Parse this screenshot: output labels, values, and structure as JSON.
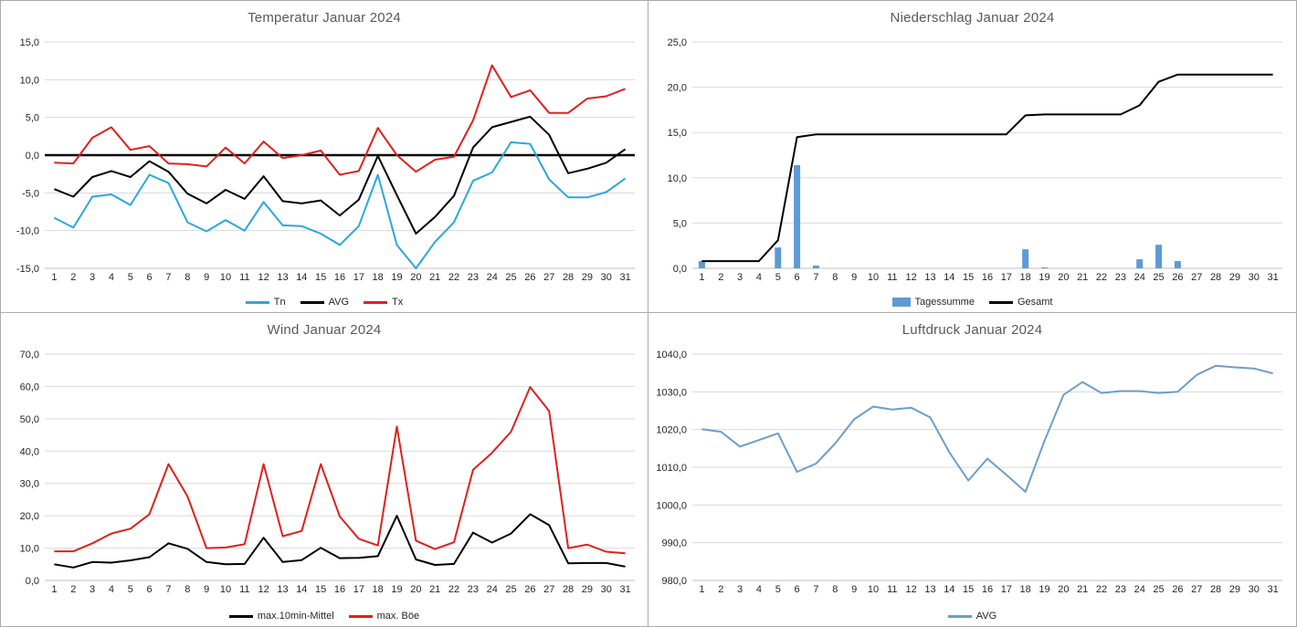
{
  "page": {
    "background": "#FFFFFF",
    "panel_border_color": "#ABABAB",
    "gridline_color": "#D9D9D9",
    "title_color": "#595959",
    "tick_label_color": "#262626"
  },
  "chart_data": [
    {
      "type": "line",
      "title": "Temperatur Januar 2024",
      "categories": [
        1,
        2,
        3,
        4,
        5,
        6,
        7,
        8,
        9,
        10,
        11,
        12,
        13,
        14,
        15,
        16,
        17,
        18,
        19,
        20,
        21,
        22,
        23,
        24,
        25,
        26,
        27,
        28,
        29,
        30,
        31
      ],
      "ylim": [
        -15,
        15
      ],
      "ytick_step": 5,
      "grid": true,
      "zero_line": true,
      "legend_position": "bottom",
      "series": [
        {
          "name": "Tn",
          "type": "line",
          "color": "#2BA7DE",
          "values": [
            -8.3,
            -9.6,
            -5.5,
            -5.2,
            -6.6,
            -2.6,
            -3.7,
            -8.9,
            -10.1,
            -8.6,
            -10.0,
            -6.2,
            -9.3,
            -9.4,
            -10.4,
            -11.9,
            -9.4,
            -2.6,
            -11.9,
            -15.0,
            -11.5,
            -8.9,
            -3.4,
            -2.3,
            1.7,
            1.5,
            -3.2,
            -5.6,
            -5.6,
            -4.9,
            -3.1
          ]
        },
        {
          "name": "AVG",
          "type": "line",
          "color": "#000000",
          "values": [
            -4.5,
            -5.5,
            -2.9,
            -2.1,
            -2.9,
            -0.8,
            -2.2,
            -5.1,
            -6.4,
            -4.6,
            -5.8,
            -2.8,
            -6.1,
            -6.4,
            -6.0,
            -8.0,
            -5.9,
            -0.1,
            -5.3,
            -10.4,
            -8.2,
            -5.4,
            1.0,
            3.7,
            4.4,
            5.1,
            2.7,
            -2.4,
            -1.8,
            -1.0,
            0.8
          ]
        },
        {
          "name": "Tx",
          "type": "line",
          "color": "#E0201E",
          "values": [
            -1.0,
            -1.1,
            2.3,
            3.7,
            0.7,
            1.2,
            -1.1,
            -1.2,
            -1.5,
            1.0,
            -1.1,
            1.8,
            -0.4,
            0.0,
            0.6,
            -2.6,
            -2.1,
            3.6,
            0.0,
            -2.2,
            -0.6,
            -0.2,
            4.6,
            11.9,
            7.7,
            8.6,
            5.6,
            5.6,
            7.5,
            7.8,
            8.8
          ]
        }
      ]
    },
    {
      "type": "combo",
      "title": "Niederschlag Januar 2024",
      "categories": [
        1,
        2,
        3,
        4,
        5,
        6,
        7,
        8,
        9,
        10,
        11,
        12,
        13,
        14,
        15,
        16,
        17,
        18,
        19,
        20,
        21,
        22,
        23,
        24,
        25,
        26,
        27,
        28,
        29,
        30,
        31
      ],
      "ylim": [
        0,
        25
      ],
      "ytick_step": 5,
      "grid": true,
      "zero_line": false,
      "legend_position": "bottom",
      "series": [
        {
          "name": "Tagessumme",
          "type": "bar",
          "color": "#5B9BD5",
          "values": [
            0.8,
            0,
            0,
            0,
            2.3,
            11.4,
            0.3,
            0,
            0,
            0,
            0,
            0,
            0,
            0,
            0,
            0,
            0,
            2.1,
            0.1,
            0,
            0,
            0,
            0,
            1.0,
            2.6,
            0.8,
            0,
            0,
            0,
            0,
            0
          ]
        },
        {
          "name": "Gesamt",
          "type": "line",
          "color": "#000000",
          "values": [
            0.8,
            0.8,
            0.8,
            0.8,
            3.1,
            14.5,
            14.8,
            14.8,
            14.8,
            14.8,
            14.8,
            14.8,
            14.8,
            14.8,
            14.8,
            14.8,
            14.8,
            16.9,
            17.0,
            17.0,
            17.0,
            17.0,
            17.0,
            18.0,
            20.6,
            21.4,
            21.4,
            21.4,
            21.4,
            21.4,
            21.4
          ]
        }
      ]
    },
    {
      "type": "line",
      "title": "Wind Januar 2024",
      "categories": [
        1,
        2,
        3,
        4,
        5,
        6,
        7,
        8,
        9,
        10,
        11,
        12,
        13,
        14,
        15,
        16,
        17,
        18,
        19,
        20,
        21,
        22,
        23,
        24,
        25,
        26,
        27,
        28,
        29,
        30,
        31
      ],
      "ylim": [
        0,
        70
      ],
      "ytick_step": 10,
      "grid": true,
      "zero_line": false,
      "legend_position": "bottom",
      "series": [
        {
          "name": "max.10min-Mittel",
          "type": "line",
          "color": "#000000",
          "values": [
            5.0,
            4.0,
            5.7,
            5.5,
            6.2,
            7.2,
            11.5,
            9.8,
            5.7,
            5.0,
            5.1,
            13.2,
            5.7,
            6.3,
            10.1,
            6.9,
            7.0,
            7.5,
            20.0,
            6.5,
            4.8,
            5.1,
            14.8,
            11.7,
            14.5,
            20.5,
            17.1,
            5.3,
            5.4,
            5.4,
            4.3
          ]
        },
        {
          "name": "max. Böe",
          "type": "line",
          "color": "#E0201E",
          "values": [
            9.0,
            9.0,
            11.5,
            14.5,
            16.0,
            20.5,
            36.0,
            26.0,
            10.0,
            10.2,
            11.2,
            36.0,
            13.7,
            15.3,
            36.0,
            19.8,
            12.9,
            10.8,
            47.6,
            12.3,
            9.7,
            11.8,
            34.2,
            39.5,
            46.0,
            59.8,
            52.4,
            10.0,
            11.1,
            8.9,
            8.4
          ]
        }
      ]
    },
    {
      "type": "line",
      "title": "Luftdruck Januar 2024",
      "categories": [
        1,
        2,
        3,
        4,
        5,
        6,
        7,
        8,
        9,
        10,
        11,
        12,
        13,
        14,
        15,
        16,
        17,
        18,
        19,
        20,
        21,
        22,
        23,
        24,
        25,
        26,
        27,
        28,
        29,
        30,
        31
      ],
      "ylim": [
        980,
        1040
      ],
      "ytick_step": 10,
      "grid": true,
      "zero_line": false,
      "legend_position": "bottom",
      "series": [
        {
          "name": "AVG",
          "type": "line",
          "color": "#6D9EC9",
          "values": [
            1020.1,
            1019.4,
            1015.5,
            1017.2,
            1019.0,
            1008.8,
            1011.0,
            1016.3,
            1022.7,
            1026.1,
            1025.3,
            1025.8,
            1023.2,
            1014.0,
            1006.5,
            1012.3,
            1008.0,
            1003.5,
            1017.0,
            1029.2,
            1032.6,
            1029.7,
            1030.2,
            1030.2,
            1029.7,
            1030.0,
            1034.5,
            1036.9,
            1036.5,
            1036.2,
            1034.9
          ]
        }
      ]
    }
  ]
}
